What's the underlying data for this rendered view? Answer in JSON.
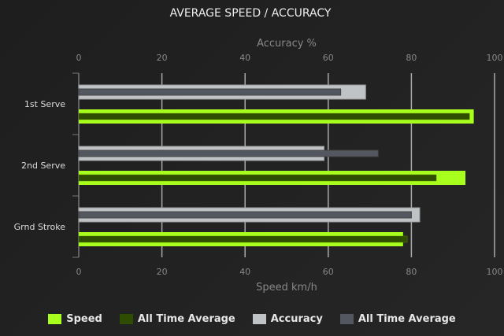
{
  "chart_data": {
    "type": "bar",
    "orientation": "horizontal",
    "title": "AVERAGE SPEED / ACCURACY",
    "categories": [
      "1st Serve",
      "2nd Serve",
      "Grnd Stroke"
    ],
    "top_axis": {
      "label": "Accuracy %",
      "range": [
        0,
        100
      ],
      "ticks": [
        "0",
        "20",
        "40",
        "60",
        "80",
        "100"
      ]
    },
    "bottom_axis": {
      "label": "Speed km/h",
      "range": [
        0,
        100
      ],
      "ticks": [
        "0",
        "20",
        "40",
        "60",
        "80",
        "100"
      ]
    },
    "grid": true,
    "legend_position": "bottom",
    "series": [
      {
        "name": "Speed",
        "axis": "bottom",
        "color": "#a8ff1e",
        "values": [
          95,
          93,
          78
        ]
      },
      {
        "name": "All Time Average",
        "axis": "bottom",
        "color": "#2f4d00",
        "values": [
          94,
          86,
          79
        ]
      },
      {
        "name": "Accuracy",
        "axis": "top",
        "color": "#bfc3c6",
        "values": [
          69,
          59,
          82
        ]
      },
      {
        "name": "All Time Average",
        "axis": "top",
        "color": "#535860",
        "values": [
          63,
          72,
          80
        ]
      }
    ]
  }
}
